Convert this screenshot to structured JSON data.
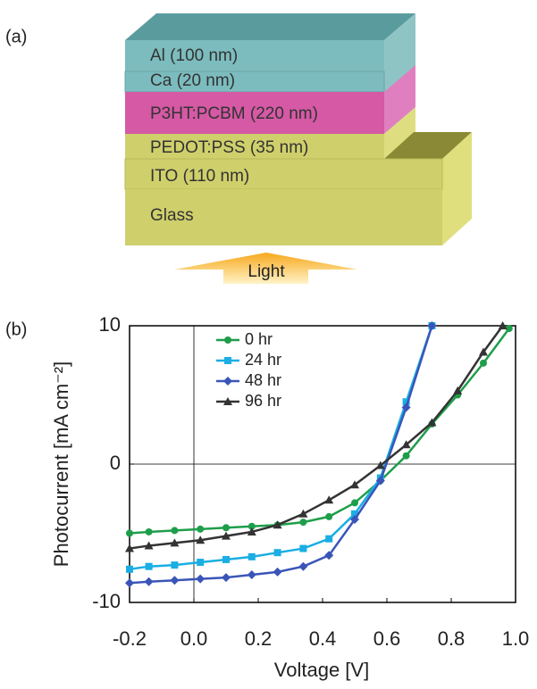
{
  "panel_labels": [
    "(a)",
    "(b)"
  ],
  "diagram": {
    "layers": [
      "Al (100 nm)",
      "Ca (20 nm)",
      "P3HT:PCBM (220 nm)",
      "PEDOT:PSS (35 nm)",
      "ITO (110 nm)",
      "Glass"
    ],
    "light": "Light"
  },
  "chart_data": {
    "type": "line",
    "xlabel": "Voltage [V]",
    "ylabel": "Photocurrent [mA cm⁻²]",
    "xlim": [
      -0.2,
      1.0
    ],
    "ylim": [
      -10,
      10
    ],
    "xticks": [
      -0.2,
      {
        "value": 0,
        "label": "0.0"
      },
      0.2,
      0.4,
      0.6,
      0.8,
      {
        "value": 1,
        "label": "1.0"
      }
    ],
    "yticks": [
      -10,
      0,
      10
    ],
    "series": [
      {
        "name": "0 hr",
        "color": "#1e9e4a",
        "marker": "circle",
        "x": [
          -0.2,
          -0.14,
          -0.06,
          0.02,
          0.1,
          0.18,
          0.26,
          0.34,
          0.42,
          0.5,
          0.58,
          0.66,
          0.74,
          0.82,
          0.9,
          0.98
        ],
        "values": [
          -5.0,
          -4.9,
          -4.8,
          -4.7,
          -4.6,
          -4.5,
          -4.4,
          -4.2,
          -3.8,
          -2.8,
          -1.2,
          0.6,
          2.9,
          5.0,
          7.3,
          9.8
        ]
      },
      {
        "name": "24 hr",
        "color": "#1aaee4",
        "marker": "square",
        "x": [
          -0.2,
          -0.14,
          -0.06,
          0.02,
          0.1,
          0.18,
          0.26,
          0.34,
          0.42,
          0.5,
          0.58,
          0.66,
          0.74
        ],
        "values": [
          -7.6,
          -7.4,
          -7.3,
          -7.1,
          -6.9,
          -6.7,
          -6.4,
          -6.1,
          -5.4,
          -3.6,
          -1.0,
          4.5,
          10
        ]
      },
      {
        "name": "48 hr",
        "color": "#3a55b8",
        "marker": "diamond",
        "x": [
          -0.2,
          -0.14,
          -0.06,
          0.02,
          0.1,
          0.18,
          0.26,
          0.34,
          0.42,
          0.5,
          0.58,
          0.66,
          0.74
        ],
        "values": [
          -8.6,
          -8.5,
          -8.4,
          -8.3,
          -8.2,
          -8.0,
          -7.8,
          -7.4,
          -6.6,
          -4.0,
          -1.2,
          4.1,
          10
        ]
      },
      {
        "name": "96 hr",
        "color": "#333333",
        "marker": "triangle",
        "x": [
          -0.2,
          -0.14,
          -0.06,
          0.02,
          0.1,
          0.18,
          0.26,
          0.34,
          0.42,
          0.5,
          0.58,
          0.66,
          0.74,
          0.82,
          0.9,
          0.96
        ],
        "values": [
          -6.1,
          -5.9,
          -5.7,
          -5.5,
          -5.2,
          -4.9,
          -4.4,
          -3.6,
          -2.6,
          -1.5,
          -0.1,
          1.4,
          3.0,
          5.3,
          8.1,
          10
        ]
      }
    ]
  }
}
